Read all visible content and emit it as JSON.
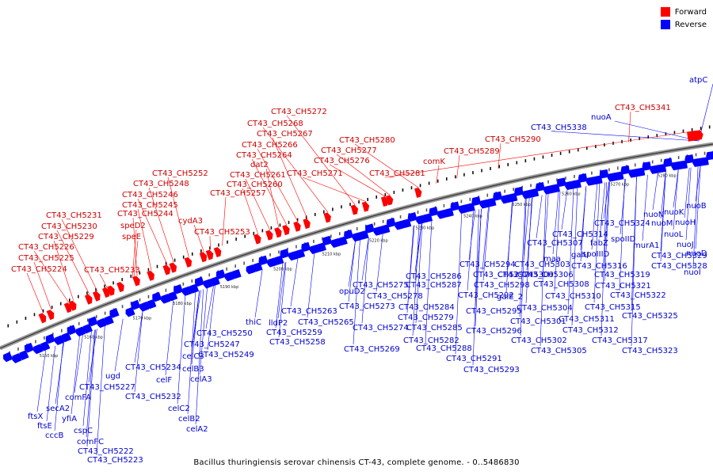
{
  "legend": {
    "forward_label": "Forward",
    "forward_color": "#ff0000",
    "reverse_label": "Reverse",
    "reverse_color": "#0000ff"
  },
  "caption": "Bacillus thuringiensis serovar chinensis CT-43, complete genome. - 0..5486830",
  "kbp_ticks": [
    "5150 kbp",
    "5160 kbp",
    "5170 kbp",
    "5180 kbp",
    "5190 kbp",
    "5200 kbp",
    "5210 kbp",
    "5220 kbp",
    "5230 kbp",
    "5240 kbp",
    "5250 kbp",
    "5260 kbp",
    "5270 kbp",
    "5280 kbp"
  ],
  "forward_genes": [
    "CT43_CH5224",
    "CT43_CH5225",
    "CT43_CH5226",
    "CT43_CH5229",
    "CT43_CH5230",
    "CT43_CH5231",
    "CT43_CH5233",
    "speE",
    "speD2",
    "CT43_CH5244",
    "CT43_CH5245",
    "CT43_CH5246",
    "CT43_CH5248",
    "CT43_CH5252",
    "cydA3",
    "CT43_CH5253",
    "CT43_CH5257",
    "CT43_CH5260",
    "CT43_CH5261",
    "dat2",
    "CT43_CH5264",
    "CT43_CH5266",
    "CT43_CH5267",
    "CT43_CH5268",
    "CT43_CH5272",
    "CT43_CH5271",
    "CT43_CH5276",
    "CT43_CH5277",
    "CT43_CH5280",
    "CT43_CH5281",
    "comK",
    "CT43_CH5289",
    "CT43_CH5290",
    "CT43_CH5341"
  ],
  "reverse_genes_top": [
    "CT43_CH5338",
    "nuoA",
    "atpC"
  ],
  "reverse_genes": [
    "ftsX",
    "ftsE",
    "cccB",
    "secA2",
    "yfiA",
    "comFA",
    "cspC",
    "comFC",
    "CT43_CH5222",
    "CT43_CH5223",
    "ugd",
    "CT43_CH5227",
    "CT43_CH5232",
    "celF",
    "celC2",
    "celB2",
    "celA2",
    "CT43_CH5234",
    "celC3",
    "celB3",
    "celA3",
    "CT43_CH5247",
    "CT43_CH5249",
    "CT43_CH5250",
    "thiC",
    "lldP2",
    "CT43_CH5258",
    "CT43_CH5259",
    "CT43_CH5263",
    "CT43_CH5265",
    "opuD2",
    "CT43_CH5269",
    "CT43_CH5273",
    "CT43_CH5274",
    "CT43_CH5275",
    "CT43_CH5278",
    "CT43_CH5279",
    "CT43_CH5282",
    "CT43_CH5284",
    "CT43_CH5285",
    "CT43_CH5286",
    "CT43_CH5287",
    "CT43_CH5288",
    "CT43_CH5291",
    "CT43_CH5293",
    "CT43_CH5292",
    "CT43_CH5294",
    "CT43_CH5295",
    "CT43_CH5296",
    "CT43_CH5297",
    "CT43_CH5298",
    "galE_2",
    "CT43_CH5300",
    "CT43_CH5301",
    "CT43_CH5302",
    "CT43_CH5303",
    "CT43_CH5304",
    "CT43_CH5305",
    "CT43_CH5306",
    "CT43_CH5307",
    "maa",
    "CT43_CH5308",
    "CT43_CH5310",
    "CT43_CH5311",
    "CT43_CH5312",
    "galU",
    "CT43_CH5314",
    "fabZ",
    "CT43_CH5315",
    "CT43_CH5316",
    "spoIIID",
    "CT43_CH5317",
    "spoIID",
    "CT43_CH5319",
    "CT43_CH5321",
    "CT43_CH5322",
    "CT43_CH5323",
    "murA1",
    "CT43_CH5324",
    "CT43_CH5325",
    "nuoN",
    "nuoM",
    "CT43_CH5328",
    "CT43_CH5329",
    "nuoL",
    "nuoK",
    "nuoJ",
    "nuoH",
    "nuoI",
    "nuoD",
    "nuoB"
  ]
}
